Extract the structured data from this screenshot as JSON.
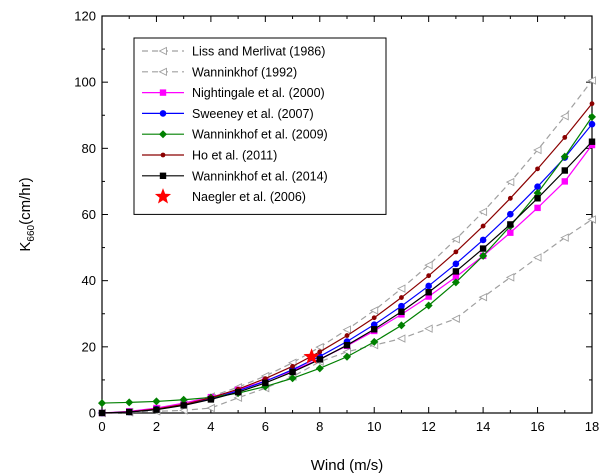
{
  "chart_data": {
    "type": "line",
    "xlabel": "Wind (m/s)",
    "ylabel_main": "K",
    "ylabel_sub": "660",
    "ylabel_unit": "(cm/hr)",
    "xlim": [
      0,
      18
    ],
    "ylim": [
      0,
      120
    ],
    "xticks": [
      0,
      2,
      4,
      6,
      8,
      10,
      12,
      14,
      16,
      18
    ],
    "yticks": [
      0,
      20,
      40,
      60,
      80,
      100,
      120
    ],
    "x": [
      0,
      1,
      2,
      3,
      4,
      5,
      6,
      7,
      8,
      9,
      10,
      11,
      12,
      13,
      14,
      15,
      16,
      17,
      18
    ],
    "grid": false,
    "legend_position": "top-left",
    "series": [
      {
        "name": "Liss and Merlivat (1986)",
        "color": "#a0a0a0",
        "dashed": true,
        "marker": "triangle-open",
        "values": [
          0,
          0.2,
          0.5,
          0.8,
          1.5,
          4.6,
          7.5,
          11,
          15.5,
          18.5,
          20.5,
          22.5,
          25.5,
          28.5,
          35,
          41,
          47,
          53,
          58.5
        ]
      },
      {
        "name": "Wanninkhof (1992)",
        "color": "#a0a0a0",
        "dashed": true,
        "marker": "triangle-open",
        "values": [
          0,
          0.3,
          1.2,
          2.8,
          5,
          7.8,
          11.2,
          15.2,
          19.9,
          25.2,
          31,
          37.6,
          44.7,
          52.5,
          60.8,
          69.8,
          79.5,
          89.7,
          100.5
        ]
      },
      {
        "name": "Nightingale et al. (2000)",
        "color": "#ff00ff",
        "dashed": false,
        "marker": "square",
        "values": [
          0,
          0.5,
          1.5,
          3,
          4.8,
          7,
          9.7,
          12.8,
          16.3,
          20.3,
          24.8,
          29.8,
          35.2,
          41.1,
          47.5,
          54.5,
          62,
          70,
          81
        ]
      },
      {
        "name": "Sweeney et al. (2007)",
        "color": "#0000ff",
        "dashed": false,
        "marker": "circle",
        "values": [
          0,
          0.3,
          1.1,
          2.4,
          4.3,
          6.7,
          9.6,
          13.1,
          17.1,
          21.6,
          26.7,
          32.3,
          38.4,
          45.1,
          52.3,
          60.1,
          68.4,
          77.2,
          87.3
        ]
      },
      {
        "name": "Wanninkhof et al. (2009)",
        "color": "#008000",
        "dashed": false,
        "marker": "diamond",
        "values": [
          3,
          3.2,
          3.5,
          4,
          4.7,
          6,
          8,
          10.5,
          13.5,
          17,
          21.5,
          26.5,
          32.5,
          39.5,
          47.5,
          56.5,
          66.5,
          77.5,
          89.5
        ]
      },
      {
        "name": "Ho et al. (2011)",
        "color": "#8b0000",
        "dashed": false,
        "marker": "dot",
        "values": [
          0,
          0.3,
          1.2,
          2.6,
          4.6,
          7.2,
          10.4,
          14.1,
          18.5,
          23.4,
          28.8,
          34.9,
          41.5,
          48.7,
          56.5,
          64.9,
          73.8,
          83.3,
          93.5
        ]
      },
      {
        "name": "Wanninkhof et al. (2014)",
        "color": "#000000",
        "dashed": false,
        "marker": "square",
        "values": [
          0,
          0.3,
          1,
          2.3,
          4.1,
          6.3,
          9.1,
          12.4,
          16.2,
          20.5,
          25.3,
          30.6,
          36.5,
          42.8,
          49.7,
          57,
          64.9,
          73.3,
          82
        ]
      }
    ],
    "points": [
      {
        "name": "Naegler et al. (2006)",
        "color": "#ff0000",
        "marker": "star",
        "x": 7.7,
        "y": 17
      }
    ]
  }
}
